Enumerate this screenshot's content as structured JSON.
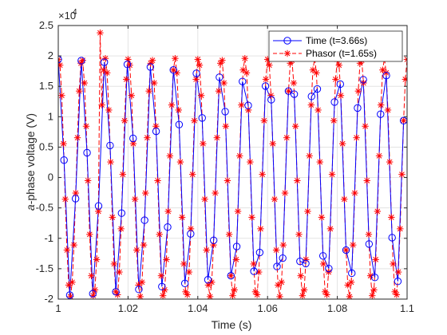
{
  "chart_data": {
    "type": "line",
    "xlabel": "Time (s)",
    "ylabel_italic": "a",
    "ylabel_rest": "-phase voltage (V)",
    "exponent_base": "×10",
    "exponent_power": "4",
    "xlim": [
      1.0,
      1.1
    ],
    "ylim": [
      -2.0,
      2.5
    ],
    "y_scale": 10000,
    "x_ticks": [
      "1",
      "1.02",
      "1.04",
      "1.06",
      "1.08",
      "1.1"
    ],
    "y_ticks": [
      "-2",
      "-1.5",
      "-1",
      "-0.5",
      "0",
      "0.5",
      "1",
      "1.5",
      "2",
      "2.5"
    ],
    "grid": true,
    "legend_position": "top-right",
    "signal": {
      "amplitude": 1.96,
      "frequency_hz": 150,
      "phase_rad": 1.44
    },
    "series": [
      {
        "name": "Time (t=3.66s)",
        "color": "#0000ff",
        "line": "solid",
        "marker": "circle",
        "sample_step": 0.00165,
        "x0": 1.0
      },
      {
        "name": "Phasor (t=1.65s)",
        "color": "#ff0000",
        "line": "dashed",
        "marker": "asterisk",
        "sample_step": 0.0005,
        "x0": 1.0,
        "overshoot": {
          "x": 1.012,
          "y": 2.38
        }
      }
    ]
  }
}
